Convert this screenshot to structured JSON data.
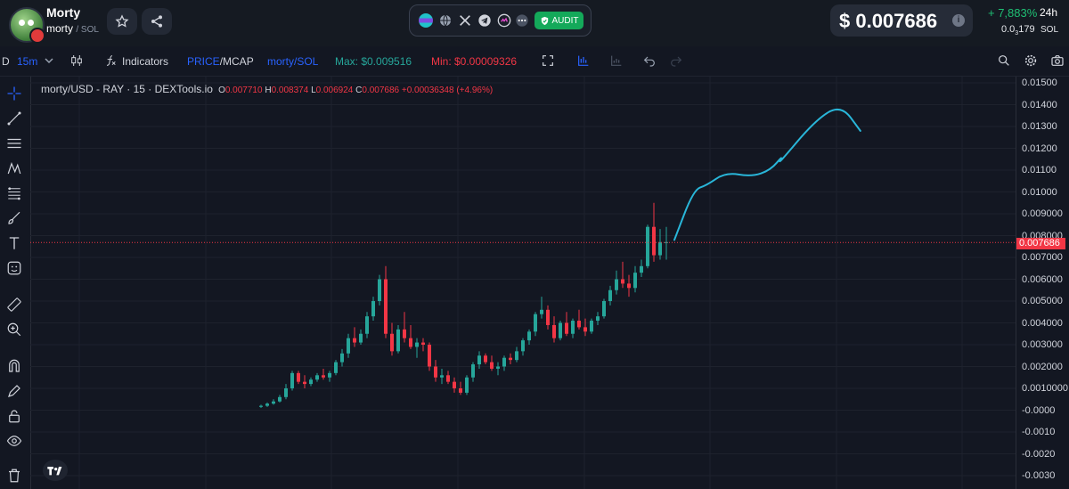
{
  "token": {
    "name": "Morty",
    "symbol": "morty",
    "chain": "/ SOL"
  },
  "socials": [
    "globe-icon",
    "x-icon",
    "telegram-icon",
    "link-icon",
    "more-icon"
  ],
  "audit_label": "AUDIT",
  "price": {
    "usd": "$ 0.007686",
    "change": "+ 7,883%",
    "period": "24h",
    "sol_lead": "0.0",
    "sol_sub": "3",
    "sol_tail": "179",
    "sol_unit": "SOL"
  },
  "toolbar": {
    "timeframe_prefix": "D",
    "timeframe": "15m",
    "indicators": "Indicators",
    "price_mcap_a": "PRICE",
    "price_mcap_b": "/MCAP",
    "pair": "morty/SOL",
    "max": "Max: $0.009516",
    "min": "Min: $0.00009326"
  },
  "legend": {
    "title": "morty/USD - RAY · 15 · DEXTools.io",
    "o": "0.007710",
    "h": "0.008374",
    "l": "0.006924",
    "c": "0.007686",
    "change": "+0.00036348 (+4.96%)"
  },
  "chart_data": {
    "type": "candlestick",
    "y_ticks": [
      "0.01500",
      "0.01400",
      "0.01300",
      "0.01200",
      "0.01100",
      "0.01000",
      "0.009000",
      "0.008000",
      "0.007000",
      "0.006000",
      "0.005000",
      "0.004000",
      "0.003000",
      "0.002000",
      "0.0010000",
      "-0.0000",
      "-0.0010",
      "-0.0020",
      "-0.0030"
    ],
    "ylim": [
      -0.0035,
      0.0155
    ],
    "last_price_label": "0.007686",
    "last_price": 0.007686,
    "candles": [
      [
        0.00015,
        0.00025,
        0.0001,
        0.0002
      ],
      [
        0.0002,
        0.00035,
        0.00015,
        0.0003
      ],
      [
        0.0003,
        0.0005,
        0.00025,
        0.0004
      ],
      [
        0.0004,
        0.0007,
        0.00035,
        0.0006
      ],
      [
        0.0006,
        0.0012,
        0.0005,
        0.001
      ],
      [
        0.001,
        0.0018,
        0.0009,
        0.0017
      ],
      [
        0.0017,
        0.0018,
        0.0012,
        0.0013
      ],
      [
        0.0013,
        0.0016,
        0.001,
        0.0012
      ],
      [
        0.0012,
        0.0015,
        0.0011,
        0.0014
      ],
      [
        0.0014,
        0.0017,
        0.0013,
        0.0016
      ],
      [
        0.0016,
        0.0019,
        0.0014,
        0.0015
      ],
      [
        0.0015,
        0.0018,
        0.0013,
        0.0017
      ],
      [
        0.0017,
        0.0023,
        0.0016,
        0.0022
      ],
      [
        0.0022,
        0.0028,
        0.002,
        0.0026
      ],
      [
        0.0026,
        0.0035,
        0.0024,
        0.0033
      ],
      [
        0.0033,
        0.0038,
        0.0029,
        0.0031
      ],
      [
        0.0031,
        0.0037,
        0.003,
        0.0035
      ],
      [
        0.0035,
        0.0045,
        0.0033,
        0.0043
      ],
      [
        0.0043,
        0.0052,
        0.0041,
        0.005
      ],
      [
        0.005,
        0.0062,
        0.0048,
        0.006
      ],
      [
        0.006,
        0.0066,
        0.0033,
        0.0035
      ],
      [
        0.0035,
        0.004,
        0.0025,
        0.0027
      ],
      [
        0.0027,
        0.0039,
        0.0026,
        0.0037
      ],
      [
        0.0037,
        0.0045,
        0.0031,
        0.0033
      ],
      [
        0.0033,
        0.0039,
        0.0028,
        0.0029
      ],
      [
        0.0029,
        0.0033,
        0.0024,
        0.0031
      ],
      [
        0.0031,
        0.0033,
        0.0027,
        0.003
      ],
      [
        0.003,
        0.0031,
        0.0018,
        0.002
      ],
      [
        0.002,
        0.0023,
        0.0013,
        0.0015
      ],
      [
        0.0015,
        0.0019,
        0.0012,
        0.0016
      ],
      [
        0.0016,
        0.0018,
        0.0012,
        0.0013
      ],
      [
        0.0013,
        0.0015,
        0.0008,
        0.001
      ],
      [
        0.001,
        0.0013,
        0.0007,
        0.0008
      ],
      [
        0.0008,
        0.0016,
        0.0007,
        0.0015
      ],
      [
        0.0015,
        0.0022,
        0.0013,
        0.0021
      ],
      [
        0.0021,
        0.0027,
        0.0019,
        0.0025
      ],
      [
        0.0025,
        0.0026,
        0.0021,
        0.0022
      ],
      [
        0.0022,
        0.0025,
        0.0018,
        0.0019
      ],
      [
        0.0019,
        0.0022,
        0.0016,
        0.002
      ],
      [
        0.002,
        0.0025,
        0.0018,
        0.0024
      ],
      [
        0.0024,
        0.0026,
        0.0021,
        0.0023
      ],
      [
        0.0023,
        0.0029,
        0.0022,
        0.0027
      ],
      [
        0.0027,
        0.0033,
        0.0025,
        0.0032
      ],
      [
        0.0032,
        0.0037,
        0.003,
        0.0036
      ],
      [
        0.0036,
        0.0045,
        0.0034,
        0.0044
      ],
      [
        0.0044,
        0.0052,
        0.0042,
        0.0046
      ],
      [
        0.0046,
        0.0048,
        0.0037,
        0.0039
      ],
      [
        0.0039,
        0.0043,
        0.0031,
        0.0033
      ],
      [
        0.0033,
        0.0041,
        0.0032,
        0.004
      ],
      [
        0.004,
        0.0045,
        0.0034,
        0.0035
      ],
      [
        0.0035,
        0.0042,
        0.0033,
        0.0041
      ],
      [
        0.0041,
        0.0046,
        0.0037,
        0.0038
      ],
      [
        0.0038,
        0.0042,
        0.0034,
        0.0036
      ],
      [
        0.0036,
        0.0042,
        0.0035,
        0.0041
      ],
      [
        0.0041,
        0.0045,
        0.0039,
        0.0043
      ],
      [
        0.0043,
        0.0051,
        0.0042,
        0.005
      ],
      [
        0.005,
        0.0057,
        0.0048,
        0.0055
      ],
      [
        0.0055,
        0.0064,
        0.0053,
        0.006
      ],
      [
        0.006,
        0.0068,
        0.0056,
        0.0058
      ],
      [
        0.0058,
        0.0062,
        0.0052,
        0.0056
      ],
      [
        0.0056,
        0.0066,
        0.0054,
        0.0063
      ],
      [
        0.0063,
        0.0069,
        0.0061,
        0.0066
      ],
      [
        0.0066,
        0.0085,
        0.0065,
        0.0084
      ],
      [
        0.0084,
        0.0095,
        0.0068,
        0.0071
      ],
      [
        0.0071,
        0.0083,
        0.0069,
        0.0077
      ],
      [
        0.0077,
        0.0084,
        0.0069,
        0.0077
      ]
    ],
    "drawing": [
      [
        0.0,
        0.0078
      ],
      [
        0.3,
        0.0101
      ],
      [
        0.5,
        0.0103
      ],
      [
        0.8,
        0.0109
      ],
      [
        1.2,
        0.0107
      ],
      [
        1.5,
        0.011
      ],
      [
        1.7,
        0.0117
      ],
      [
        1.6,
        0.0112
      ],
      [
        2.2,
        0.0133
      ],
      [
        2.6,
        0.014
      ],
      [
        2.9,
        0.0128
      ]
    ]
  },
  "colors": {
    "up": "#26a69a",
    "down": "#f23645",
    "drawing": "#29b6d9",
    "accent": "#2962ff",
    "green": "#1fbf74"
  }
}
